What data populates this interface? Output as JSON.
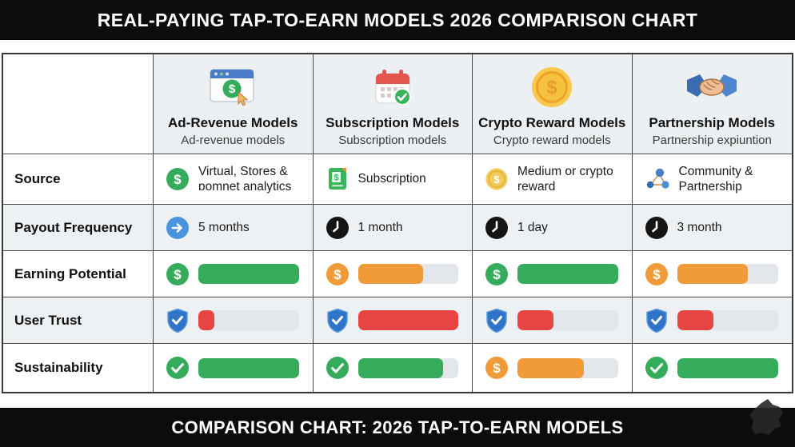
{
  "title_bar": {
    "text": "REAL-PAYING TAP-TO-EARN MODELS 2026 COMPARISON CHART"
  },
  "footer_bar": {
    "text": "COMPARISON CHART: 2026 TAP-TO-EARN MODELS"
  },
  "colors": {
    "green": "#35ab5c",
    "orange": "#f09a38",
    "red": "#e84443",
    "track_gray": "#e3e6ea",
    "bar_black": "#0c0c0c",
    "header_cell_bg": "#edf0f2",
    "alt_row_bg": "#eef1f3",
    "border": "#4a4a4a",
    "watermark": "#272727"
  },
  "table": {
    "columns": [
      {
        "icon": "browser-ad-icon",
        "title": "Ad-Revenue Models",
        "subtitle": "Ad-revenue models"
      },
      {
        "icon": "calendar-check-icon",
        "title": "Subscription Models",
        "subtitle": "Subscription models"
      },
      {
        "icon": "gold-coin-icon",
        "title": "Crypto Reward Models",
        "subtitle": "Crypto reward models"
      },
      {
        "icon": "handshake-icon",
        "title": "Partnership Models",
        "subtitle": "Partnership expiuntion"
      }
    ],
    "rows": [
      {
        "label": "Source",
        "type": "text",
        "cells": [
          {
            "icon": "dollar-circle-green-icon",
            "text": "Virtual, Stores & ɒomnet analytics"
          },
          {
            "icon": "receipt-icon",
            "text": "Subscription"
          },
          {
            "icon": "gold-coin-small-icon",
            "text": "Medium or crypto reward"
          },
          {
            "icon": "community-icon",
            "text": "Community & Partnership"
          }
        ]
      },
      {
        "label": "Payout Frequency",
        "type": "text",
        "cells": [
          {
            "icon": "arrow-right-circle-icon",
            "text": "5 months"
          },
          {
            "icon": "clock-icon",
            "text": "1 month"
          },
          {
            "icon": "clock-icon",
            "text": "1 day"
          },
          {
            "icon": "clock-icon",
            "text": "3 month"
          }
        ]
      },
      {
        "label": "Earning Potential",
        "type": "bar",
        "cells": [
          {
            "icon": "dollar-circle-green-icon",
            "value": 100,
            "color": "green"
          },
          {
            "icon": "dollar-circle-orange-icon",
            "value": 65,
            "color": "orange"
          },
          {
            "icon": "dollar-circle-green-icon",
            "value": 100,
            "color": "green"
          },
          {
            "icon": "dollar-circle-orange-icon",
            "value": 70,
            "color": "orange"
          }
        ]
      },
      {
        "label": "User Trust",
        "type": "bar",
        "cells": [
          {
            "icon": "shield-check-icon",
            "value": 16,
            "color": "red"
          },
          {
            "icon": "shield-check-icon",
            "value": 100,
            "color": "red"
          },
          {
            "icon": "shield-check-icon",
            "value": 36,
            "color": "red"
          },
          {
            "icon": "shield-check-icon",
            "value": 36,
            "color": "red"
          }
        ]
      },
      {
        "label": "Sustainability",
        "type": "bar",
        "cells": [
          {
            "icon": "check-circle-icon",
            "value": 100,
            "color": "green"
          },
          {
            "icon": "check-circle-icon",
            "value": 85,
            "color": "green"
          },
          {
            "icon": "dollar-circle-orange-icon",
            "value": 66,
            "color": "orange"
          },
          {
            "icon": "check-circle-icon",
            "value": 100,
            "color": "green"
          }
        ]
      }
    ]
  },
  "chart_data": {
    "type": "table",
    "title": "REAL-PAYING TAP-TO-EARN MODELS 2026 COMPARISON CHART",
    "footer": "COMPARISON CHART: 2026 TAP-TO-EARN MODELS",
    "columns": [
      "Ad-Revenue Models",
      "Subscription Models",
      "Crypto Reward Models",
      "Partnership Models"
    ],
    "column_subtitles": [
      "Ad-revenue models",
      "Subscription models",
      "Crypto reward models",
      "Partnership expiuntion"
    ],
    "rows": [
      {
        "metric": "Source",
        "values": [
          "Virtual, Stores & ɒomnet analytics",
          "Subscription",
          "Medium or crypto reward",
          "Community & Partnership"
        ]
      },
      {
        "metric": "Payout Frequency",
        "values": [
          "5 months",
          "1 month",
          "1 day",
          "3 month"
        ]
      },
      {
        "metric": "Earning Potential",
        "values_pct": [
          100,
          65,
          100,
          70
        ],
        "bar_colors": [
          "green",
          "orange",
          "green",
          "orange"
        ]
      },
      {
        "metric": "User Trust",
        "values_pct": [
          16,
          100,
          36,
          36
        ],
        "bar_colors": [
          "red",
          "red",
          "red",
          "red"
        ]
      },
      {
        "metric": "Sustainability",
        "values_pct": [
          100,
          85,
          66,
          100
        ],
        "bar_colors": [
          "green",
          "green",
          "orange",
          "green"
        ]
      }
    ]
  }
}
